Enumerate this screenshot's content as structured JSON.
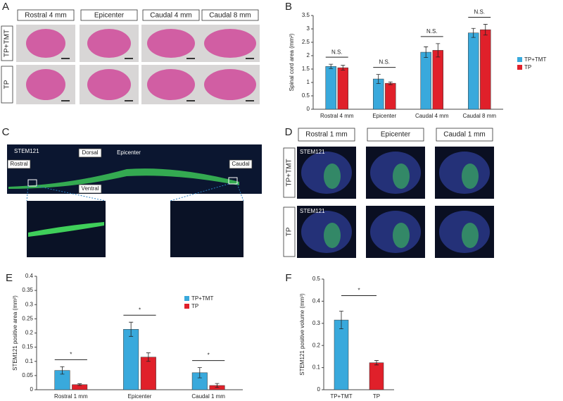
{
  "panels": {
    "A": {
      "letter": "A",
      "columns": [
        "Rostral 4 mm",
        "Epicenter",
        "Caudal 4 mm",
        "Caudal 8 mm"
      ],
      "rows": [
        "TP+TMT",
        "TP"
      ]
    },
    "C": {
      "letter": "C",
      "labels": [
        "STEM121",
        "Dorsal",
        "Epicenter",
        "Rostral",
        "Caudal",
        "Ventral"
      ]
    },
    "D": {
      "letter": "D",
      "columns": [
        "Rostral 1 mm",
        "Epicenter",
        "Caudal 1 mm"
      ],
      "rows": [
        "TP+TMT",
        "TP"
      ],
      "stain": "STEM121"
    }
  },
  "chart_data": [
    {
      "type": "bar",
      "panel": "B",
      "ylabel": "Spinal cord area (mm²)",
      "categories": [
        "Rostral 4 mm",
        "Epicenter",
        "Caudal 4 mm",
        "Caudal 8 mm"
      ],
      "series": [
        {
          "name": "TP+TMT",
          "color": "#39a9dc",
          "values": [
            1.6,
            1.13,
            2.13,
            2.85
          ],
          "errors": [
            0.08,
            0.17,
            0.2,
            0.17
          ]
        },
        {
          "name": "TP",
          "color": "#e0202a",
          "values": [
            1.55,
            0.97,
            2.2,
            2.97
          ],
          "errors": [
            0.09,
            0.05,
            0.25,
            0.2
          ]
        }
      ],
      "annotations": [
        "N.S.",
        "N.S.",
        "N.S.",
        "N.S."
      ],
      "ylim": [
        0,
        3.5
      ],
      "yticks": [
        0,
        0.5,
        1,
        1.5,
        2,
        2.5,
        3,
        3.5
      ],
      "legend": "right"
    },
    {
      "type": "bar",
      "panel": "E",
      "ylabel": "STEM121 positive area (mm²)",
      "categories": [
        "Rostral 1 mm",
        "Epicenter",
        "Caudal 1 mm"
      ],
      "series": [
        {
          "name": "TP+TMT",
          "color": "#39a9dc",
          "values": [
            0.068,
            0.213,
            0.06
          ],
          "errors": [
            0.013,
            0.025,
            0.018
          ]
        },
        {
          "name": "TP",
          "color": "#e0202a",
          "values": [
            0.018,
            0.115,
            0.015
          ],
          "errors": [
            0.003,
            0.015,
            0.007
          ]
        }
      ],
      "annotations": [
        "*",
        "*",
        "*"
      ],
      "ylim": [
        0,
        0.4
      ],
      "yticks": [
        0,
        0.05,
        0.1,
        0.15,
        0.2,
        0.25,
        0.3,
        0.35,
        0.4
      ],
      "legend": "top right"
    },
    {
      "type": "bar",
      "panel": "F",
      "ylabel": "STEM121 positive volume (mm³)",
      "categories": [
        "TP+TMT",
        "TP"
      ],
      "values": [
        0.315,
        0.122
      ],
      "errors": [
        0.04,
        0.01
      ],
      "colors": [
        "#39a9dc",
        "#e0202a"
      ],
      "annotations": [
        "*"
      ],
      "ylim": [
        0,
        0.5
      ],
      "yticks": [
        0,
        0.1,
        0.2,
        0.3,
        0.4,
        0.5
      ]
    }
  ]
}
